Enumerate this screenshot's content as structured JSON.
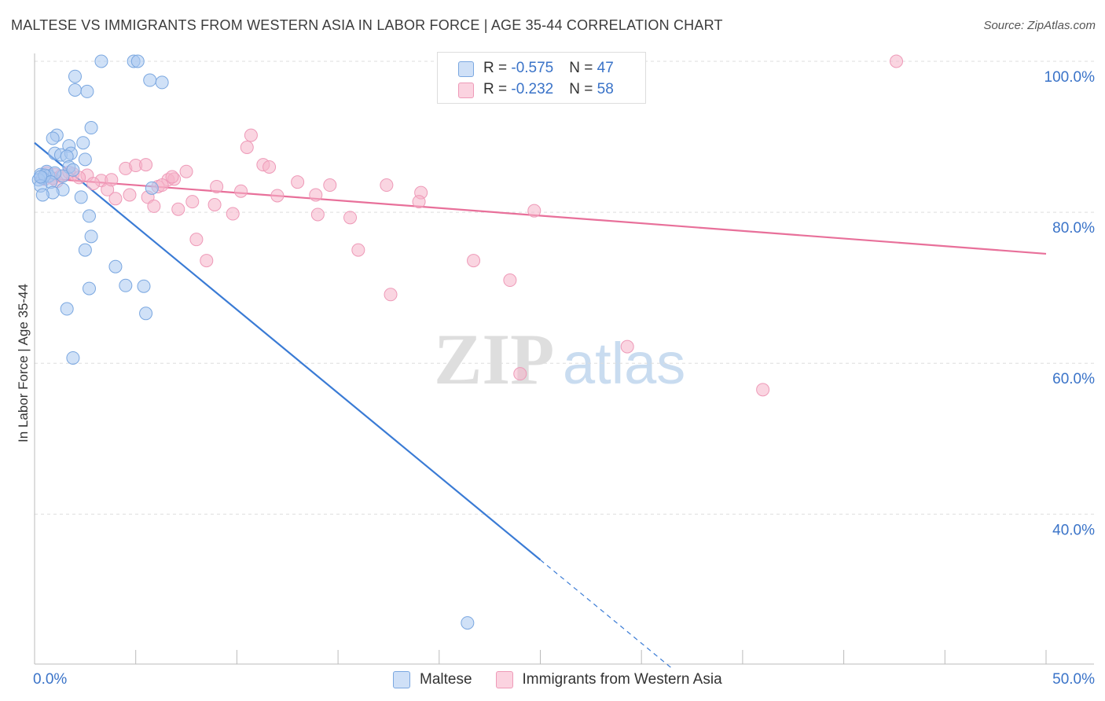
{
  "title": "MALTESE VS IMMIGRANTS FROM WESTERN ASIA IN LABOR FORCE | AGE 35-44 CORRELATION CHART",
  "source": "Source: ZipAtlas.com",
  "watermark": {
    "zip": "ZIP",
    "atlas": "atlas"
  },
  "legend": {
    "rows": [
      {
        "r_label": "R = ",
        "r_value": "-0.575",
        "n_label": "N = ",
        "n_value": "47",
        "color": "#a9c8f0"
      },
      {
        "r_label": "R = ",
        "r_value": "-0.232",
        "n_label": "N = ",
        "n_value": "58",
        "color": "#f5b3c8"
      }
    ]
  },
  "bottom_legend": [
    {
      "label": "Maltese",
      "color": "#a9c8f0"
    },
    {
      "label": "Immigrants from Western Asia",
      "color": "#f5b3c8"
    }
  ],
  "colors": {
    "blue": "#3a7bd5",
    "blue_fill": "#a9c8f0",
    "pink": "#e8709a",
    "pink_fill": "#f5b3c8",
    "axis_text": "#3a73c8",
    "grid": "#dddddd"
  },
  "chart_data": {
    "type": "scatter",
    "title": "MALTESE VS IMMIGRANTS FROM WESTERN ASIA IN LABOR FORCE | AGE 35-44 CORRELATION CHART",
    "xlabel": "",
    "ylabel": "In Labor Force | Age 35-44",
    "xlim": [
      0,
      50
    ],
    "ylim": [
      20,
      101
    ],
    "x_tick_labels": [
      {
        "value": 0,
        "label": "0.0%"
      },
      {
        "value": 50,
        "label": "50.0%"
      }
    ],
    "y_tick_labels": [
      {
        "value": 100,
        "label": "100.0%"
      },
      {
        "value": 80,
        "label": "80.0%"
      },
      {
        "value": 60,
        "label": "60.0%"
      },
      {
        "value": 40,
        "label": "40.0%"
      }
    ],
    "grid": true,
    "legend_position": "top-center",
    "series": [
      {
        "name": "Maltese",
        "R": -0.575,
        "N": 47,
        "trend": {
          "x0": 0,
          "y0": 89.2,
          "x_solid_end": 25,
          "x_dash_end": 31.5,
          "slope": -2.21
        },
        "points": [
          [
            3.3,
            100
          ],
          [
            4.9,
            100
          ],
          [
            5.1,
            100
          ],
          [
            2.0,
            98.0
          ],
          [
            5.7,
            97.5
          ],
          [
            6.3,
            97.2
          ],
          [
            2.0,
            96.2
          ],
          [
            2.6,
            96.0
          ],
          [
            2.8,
            91.2
          ],
          [
            1.1,
            90.2
          ],
          [
            0.9,
            89.8
          ],
          [
            2.4,
            89.2
          ],
          [
            1.7,
            88.8
          ],
          [
            1.0,
            87.8
          ],
          [
            1.3,
            87.6
          ],
          [
            1.8,
            87.8
          ],
          [
            1.6,
            87.4
          ],
          [
            2.5,
            87.0
          ],
          [
            1.7,
            86.0
          ],
          [
            1.9,
            85.6
          ],
          [
            0.6,
            85.4
          ],
          [
            0.3,
            85.0
          ],
          [
            0.7,
            84.8
          ],
          [
            0.4,
            84.5
          ],
          [
            0.2,
            84.3
          ],
          [
            1.4,
            84.8
          ],
          [
            1.0,
            85.2
          ],
          [
            0.5,
            84.9
          ],
          [
            0.8,
            84.0
          ],
          [
            0.3,
            83.5
          ],
          [
            1.4,
            83.0
          ],
          [
            5.8,
            83.2
          ],
          [
            0.9,
            82.6
          ],
          [
            0.4,
            82.3
          ],
          [
            2.3,
            82.0
          ],
          [
            2.7,
            79.5
          ],
          [
            2.8,
            76.8
          ],
          [
            2.5,
            75.0
          ],
          [
            4.0,
            72.8
          ],
          [
            4.5,
            70.3
          ],
          [
            5.4,
            70.2
          ],
          [
            2.7,
            69.9
          ],
          [
            5.5,
            66.6
          ],
          [
            1.6,
            67.2
          ],
          [
            1.9,
            60.7
          ],
          [
            21.4,
            25.6
          ],
          [
            0.3,
            84.7
          ]
        ]
      },
      {
        "name": "Immigrants from Western Asia",
        "R": -0.232,
        "N": 58,
        "trend": {
          "x0": 0,
          "y0": 84.6,
          "x_end": 50,
          "y_end": 74.5
        },
        "points": [
          [
            21.2,
            100
          ],
          [
            42.6,
            100
          ],
          [
            10.7,
            90.2
          ],
          [
            10.5,
            88.6
          ],
          [
            11.3,
            86.3
          ],
          [
            11.6,
            86.0
          ],
          [
            4.5,
            85.8
          ],
          [
            5.0,
            86.2
          ],
          [
            5.5,
            86.3
          ],
          [
            7.5,
            85.4
          ],
          [
            0.6,
            85.2
          ],
          [
            1.0,
            85.0
          ],
          [
            1.3,
            84.8
          ],
          [
            1.9,
            85.1
          ],
          [
            2.6,
            84.9
          ],
          [
            3.3,
            84.2
          ],
          [
            6.6,
            84.3
          ],
          [
            6.9,
            84.4
          ],
          [
            13.0,
            84.0
          ],
          [
            0.5,
            84.4
          ],
          [
            1.1,
            84.1
          ],
          [
            2.9,
            83.8
          ],
          [
            6.1,
            83.4
          ],
          [
            6.3,
            83.6
          ],
          [
            9.0,
            83.4
          ],
          [
            14.6,
            83.6
          ],
          [
            17.4,
            83.6
          ],
          [
            3.6,
            83.0
          ],
          [
            10.2,
            82.8
          ],
          [
            12.0,
            82.2
          ],
          [
            13.9,
            82.3
          ],
          [
            19.1,
            82.6
          ],
          [
            4.7,
            82.3
          ],
          [
            4.0,
            81.8
          ],
          [
            5.6,
            82.0
          ],
          [
            7.8,
            81.4
          ],
          [
            8.9,
            81.0
          ],
          [
            5.9,
            80.8
          ],
          [
            7.1,
            80.4
          ],
          [
            19.0,
            81.4
          ],
          [
            24.7,
            80.2
          ],
          [
            9.8,
            79.8
          ],
          [
            14.0,
            79.7
          ],
          [
            15.6,
            79.3
          ],
          [
            8.0,
            76.4
          ],
          [
            16.0,
            75.0
          ],
          [
            8.5,
            73.6
          ],
          [
            21.7,
            73.6
          ],
          [
            23.5,
            71.0
          ],
          [
            17.6,
            69.1
          ],
          [
            29.3,
            62.2
          ],
          [
            24.0,
            58.6
          ],
          [
            36.0,
            56.5
          ],
          [
            1.7,
            85.3
          ],
          [
            2.2,
            84.6
          ],
          [
            0.9,
            84.5
          ],
          [
            3.8,
            84.3
          ],
          [
            6.8,
            84.7
          ]
        ]
      }
    ]
  }
}
